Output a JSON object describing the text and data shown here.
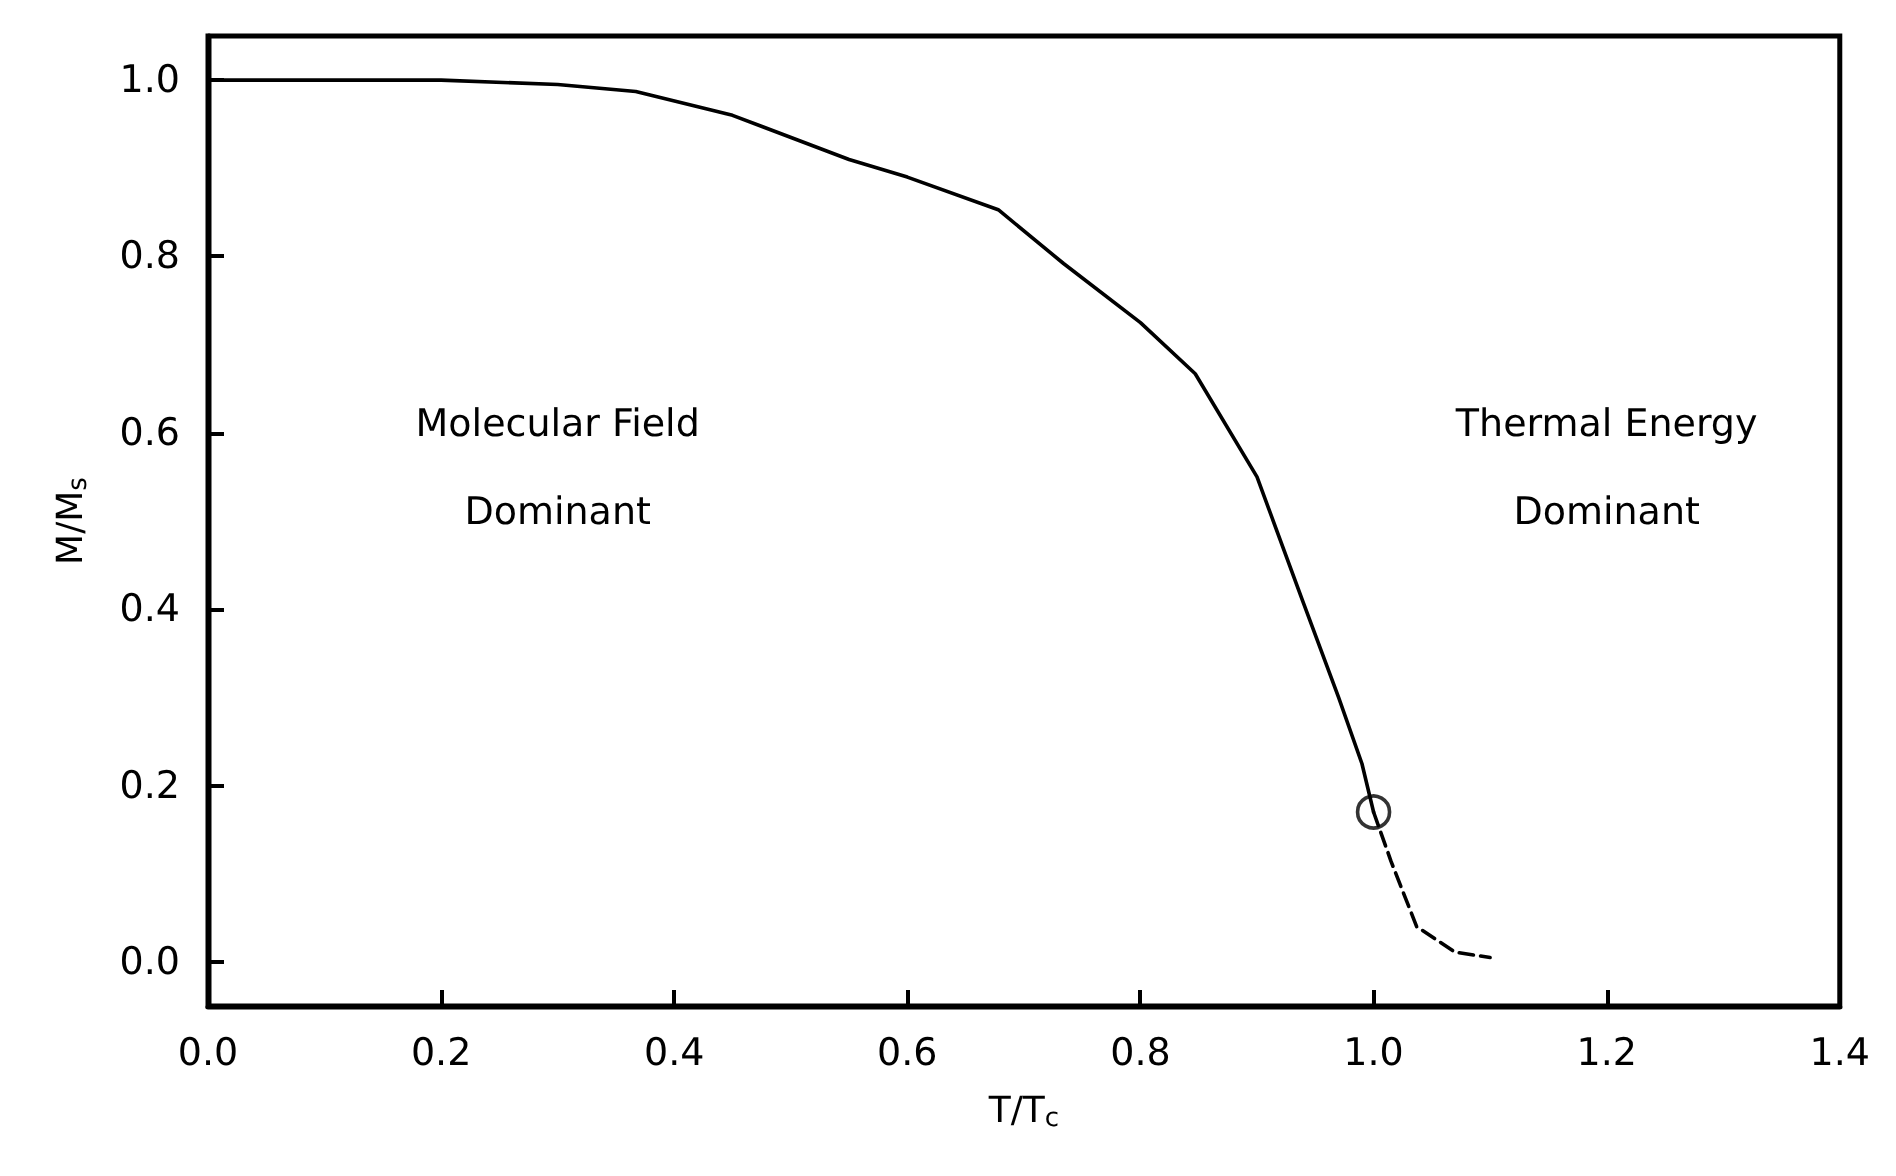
{
  "chart_data": {
    "type": "line",
    "xlabel": "T/T$_{c}$",
    "ylabel": "M/M$_{s}$",
    "xlim": [
      0,
      1.4
    ],
    "ylim": [
      -0.05,
      1.05
    ],
    "xticks": [
      {
        "value": 0,
        "label": "0.0"
      },
      {
        "value": 0.2,
        "label": "0.2"
      },
      {
        "value": 0.4,
        "label": "0.4"
      },
      {
        "value": 0.6,
        "label": "0.6"
      },
      {
        "value": 0.8,
        "label": "0.8"
      },
      {
        "value": 1.0,
        "label": "1.0"
      },
      {
        "value": 1.2,
        "label": "1.2"
      },
      {
        "value": 1.4,
        "label": "1.4"
      }
    ],
    "yticks": [
      {
        "value": 0,
        "label": "0.0"
      },
      {
        "value": 0.2,
        "label": "0.2"
      },
      {
        "value": 0.4,
        "label": "0.4"
      },
      {
        "value": 0.6,
        "label": "0.6"
      },
      {
        "value": 0.8,
        "label": "0.8"
      },
      {
        "value": 1.0,
        "label": "1.0"
      }
    ],
    "grid": false,
    "annotations": [
      "Molecular Field\nDominant",
      "Thermal Energy\nDominant"
    ],
    "series": [
      {
        "color": "#000000",
        "line_style": "solid",
        "marker": "none",
        "x": [
          0,
          0.1,
          0.2,
          0.3,
          0.367,
          0.45,
          0.55,
          0.6,
          0.678,
          0.734,
          0.8,
          0.847,
          0.9,
          0.939,
          0.97,
          0.99,
          1.0
        ],
        "values": [
          1.0,
          1.0,
          1.0,
          0.995,
          0.987,
          0.96,
          0.91,
          0.89,
          0.853,
          0.792,
          0.725,
          0.667,
          0.55,
          0.41,
          0.3,
          0.225,
          0.17
        ]
      },
      {
        "color": "#000000",
        "line_style": "dashed",
        "marker": "none",
        "x": [
          1.0,
          1.015,
          1.037,
          1.07,
          1.1
        ],
        "values": [
          0.17,
          0.114,
          0.04,
          0.011,
          0.005
        ]
      },
      {
        "type": "scatter",
        "color": "#000000",
        "marker": "circle",
        "x": [
          1.0
        ],
        "values": [
          0.17
        ]
      }
    ]
  }
}
